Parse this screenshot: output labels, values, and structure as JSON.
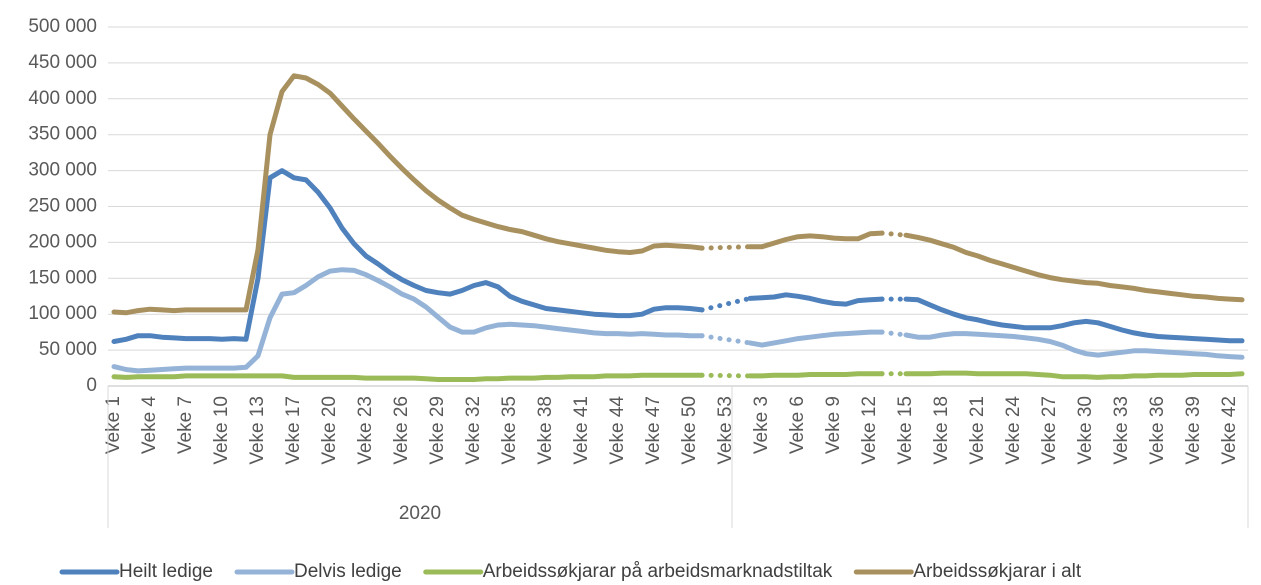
{
  "chart_data": {
    "type": "line",
    "categories": [
      "Veke 1",
      null,
      null,
      "Veke 4",
      null,
      null,
      "Veke 7",
      null,
      null,
      "Veke 10",
      null,
      null,
      "Veke 13",
      null,
      null,
      "Veke 17",
      null,
      null,
      "Veke 20",
      null,
      null,
      "Veke 23",
      null,
      null,
      "Veke 26",
      null,
      null,
      "Veke 29",
      null,
      null,
      "Veke 32",
      null,
      null,
      "Veke 35",
      null,
      null,
      "Veke 38",
      null,
      null,
      "Veke 41",
      null,
      null,
      "Veke 44",
      null,
      null,
      "Veke 47",
      null,
      null,
      "Veke 50",
      null,
      null,
      "Veke 53",
      null,
      null,
      "Veke 3",
      null,
      null,
      "Veke 6",
      null,
      null,
      "Veke 9",
      null,
      null,
      "Veke 12",
      null,
      null,
      "Veke 15",
      null,
      null,
      "Veke 18",
      null,
      null,
      "Veke 21",
      null,
      null,
      "Veke 24",
      null,
      null,
      "Veke 27",
      null,
      null,
      "Veke 30",
      null,
      null,
      "Veke 33",
      null,
      null,
      "Veke 36",
      null,
      null,
      "Veke 39",
      null,
      null,
      "Veke 42",
      null
    ],
    "group_label": "2020",
    "series": [
      {
        "name": "Heilt ledige",
        "color": "#4f81bd",
        "values": [
          62000,
          65000,
          70000,
          70000,
          68000,
          67000,
          66000,
          66000,
          66000,
          65000,
          66000,
          65000,
          150000,
          290000,
          300000,
          290000,
          287000,
          270000,
          248000,
          220000,
          198000,
          181000,
          170000,
          158000,
          148000,
          140000,
          133000,
          130000,
          128000,
          133000,
          140000,
          144000,
          138000,
          125000,
          118000,
          113000,
          108000,
          106000,
          104000,
          102000,
          100000,
          99000,
          98000,
          98000,
          100000,
          107000,
          109000,
          109000,
          108000,
          106000,
          null,
          null,
          null,
          122000,
          123000,
          124000,
          127000,
          125000,
          122000,
          118000,
          115000,
          114000,
          119000,
          120000,
          121000,
          null,
          121000,
          120000,
          113000,
          106000,
          100000,
          95000,
          92000,
          88000,
          85000,
          83000,
          81000,
          81000,
          81000,
          84000,
          88000,
          90000,
          88000,
          83000,
          78000,
          74000,
          71000,
          69000,
          68000,
          67000,
          66000,
          65000,
          64000,
          63000,
          63000
        ]
      },
      {
        "name": "Delvis ledige",
        "color": "#95b3d7",
        "values": [
          27000,
          23000,
          21000,
          22000,
          23000,
          24000,
          25000,
          25000,
          25000,
          25000,
          25000,
          26000,
          42000,
          95000,
          128000,
          130000,
          140000,
          152000,
          160000,
          162000,
          161000,
          155000,
          147000,
          138000,
          128000,
          121000,
          110000,
          96000,
          82000,
          75000,
          75000,
          81000,
          85000,
          86000,
          85000,
          84000,
          82000,
          80000,
          78000,
          76000,
          74000,
          73000,
          73000,
          72000,
          73000,
          72000,
          71000,
          71000,
          70000,
          70000,
          null,
          null,
          null,
          60000,
          57000,
          60000,
          63000,
          66000,
          68000,
          70000,
          72000,
          73000,
          74000,
          75000,
          75000,
          null,
          71000,
          68000,
          68000,
          71000,
          73000,
          73000,
          72000,
          71000,
          70000,
          69000,
          67000,
          65000,
          62000,
          57000,
          50000,
          45000,
          43000,
          45000,
          47000,
          49000,
          49000,
          48000,
          47000,
          46000,
          45000,
          44000,
          42000,
          41000,
          40000
        ]
      },
      {
        "name": "Arbeidssøkjarar på arbeidsmarknadstiltak",
        "color": "#9bbb59",
        "values": [
          13000,
          12000,
          13000,
          13000,
          13000,
          13000,
          14000,
          14000,
          14000,
          14000,
          14000,
          14000,
          14000,
          14000,
          14000,
          12000,
          12000,
          12000,
          12000,
          12000,
          12000,
          11000,
          11000,
          11000,
          11000,
          11000,
          10000,
          9000,
          9000,
          9000,
          9000,
          10000,
          10000,
          11000,
          11000,
          11000,
          12000,
          12000,
          13000,
          13000,
          13000,
          14000,
          14000,
          14000,
          15000,
          15000,
          15000,
          15000,
          15000,
          15000,
          null,
          null,
          null,
          14000,
          14000,
          15000,
          15000,
          15000,
          16000,
          16000,
          16000,
          16000,
          17000,
          17000,
          17000,
          null,
          17000,
          17000,
          17000,
          18000,
          18000,
          18000,
          17000,
          17000,
          17000,
          17000,
          17000,
          16000,
          15000,
          13000,
          13000,
          13000,
          12000,
          13000,
          13000,
          14000,
          14000,
          15000,
          15000,
          15000,
          16000,
          16000,
          16000,
          16000,
          17000
        ]
      },
      {
        "name": "Arbeidssøkjarar i alt",
        "color": "#a8915f",
        "values": [
          103000,
          102000,
          105000,
          107000,
          106000,
          105000,
          106000,
          106000,
          106000,
          106000,
          106000,
          106000,
          190000,
          350000,
          410000,
          432000,
          429000,
          420000,
          408000,
          390000,
          372000,
          355000,
          338000,
          320000,
          303000,
          287000,
          272000,
          259000,
          248000,
          238000,
          232000,
          227000,
          222000,
          218000,
          215000,
          210000,
          205000,
          201000,
          198000,
          195000,
          192000,
          189000,
          187000,
          186000,
          188000,
          195000,
          196000,
          195000,
          194000,
          192000,
          null,
          null,
          null,
          194000,
          194000,
          199000,
          204000,
          208000,
          209000,
          208000,
          206000,
          205000,
          205000,
          212000,
          213000,
          null,
          210000,
          207000,
          203000,
          198000,
          193000,
          186000,
          181000,
          175000,
          170000,
          165000,
          160000,
          155000,
          151000,
          148000,
          146000,
          144000,
          143000,
          140000,
          138000,
          136000,
          133000,
          131000,
          129000,
          127000,
          125000,
          124000,
          122000,
          121000,
          120000
        ]
      }
    ],
    "ylim": [
      0,
      500000
    ],
    "yticks": [
      0,
      {
        "value": 50000,
        "label": "50 000"
      },
      {
        "value": 100000,
        "label": "100 000"
      },
      {
        "value": 150000,
        "label": "150 000"
      },
      {
        "value": 200000,
        "label": "200 000"
      },
      {
        "value": 250000,
        "label": "250 000"
      },
      {
        "value": 300000,
        "label": "300 000"
      },
      {
        "value": 350000,
        "label": "350 000"
      },
      {
        "value": 400000,
        "label": "400 000"
      },
      {
        "value": 450000,
        "label": "450 000"
      },
      {
        "value": 500000,
        "label": "500 000"
      }
    ],
    "grid": true,
    "legend": "bottom"
  }
}
